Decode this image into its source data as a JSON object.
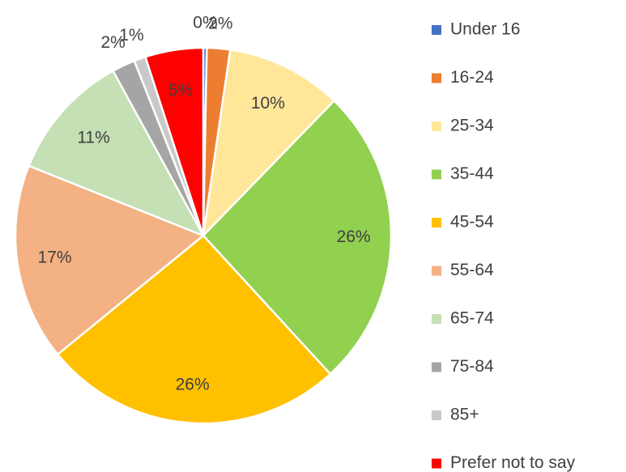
{
  "chart_data": {
    "type": "pie",
    "categories": [
      "Under 16",
      "16-24",
      "25-34",
      "35-44",
      "45-54",
      "55-64",
      "65-74",
      "75-84",
      "85+",
      "Prefer not to say"
    ],
    "values": [
      0.3,
      2,
      10,
      26,
      26,
      17,
      11,
      2,
      1,
      5
    ],
    "value_labels": [
      "0%",
      "2%",
      "10%",
      "26%",
      "26%",
      "17%",
      "11%",
      "2%",
      "1%",
      "5%"
    ],
    "colors": [
      "#4472c4",
      "#ed7d31",
      "#ffe699",
      "#92d050",
      "#ffc000",
      "#f4b183",
      "#c5e0b4",
      "#a5a5a5",
      "#c9c9c9",
      "#ff0000"
    ],
    "legend": "right"
  }
}
